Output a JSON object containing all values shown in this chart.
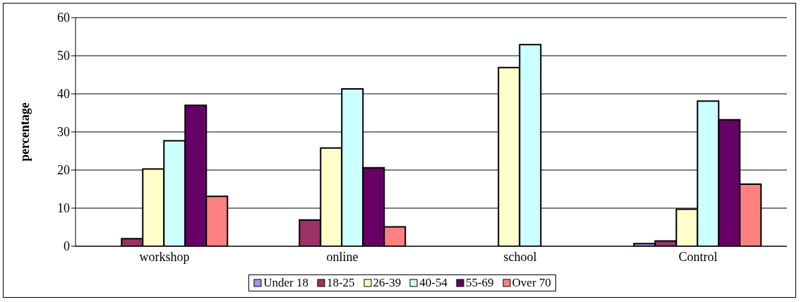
{
  "chart_data": {
    "type": "bar",
    "ylabel": "percentage",
    "categories": [
      "workshop",
      "online",
      "school",
      "Control"
    ],
    "series": [
      {
        "name": "Under 18",
        "color": "#9999ff",
        "values": [
          0,
          0,
          0,
          0.7
        ]
      },
      {
        "name": "18-25",
        "color": "#993366",
        "values": [
          2.0,
          6.9,
          0,
          1.4
        ]
      },
      {
        "name": "26-39",
        "color": "#ffffcc",
        "values": [
          20.3,
          25.8,
          46.9,
          9.7
        ]
      },
      {
        "name": "40-54",
        "color": "#ccffff",
        "values": [
          27.7,
          41.3,
          52.9,
          38.1
        ]
      },
      {
        "name": "55-69",
        "color": "#660066",
        "values": [
          37.0,
          20.6,
          0,
          33.2
        ]
      },
      {
        "name": "Over 70",
        "color": "#ff8080",
        "values": [
          13.1,
          5.1,
          0,
          16.3
        ]
      }
    ],
    "ylim": [
      0,
      60
    ],
    "yticks": [
      0,
      10,
      20,
      30,
      40,
      50,
      60
    ],
    "grid": "y",
    "legend": "bottom"
  }
}
